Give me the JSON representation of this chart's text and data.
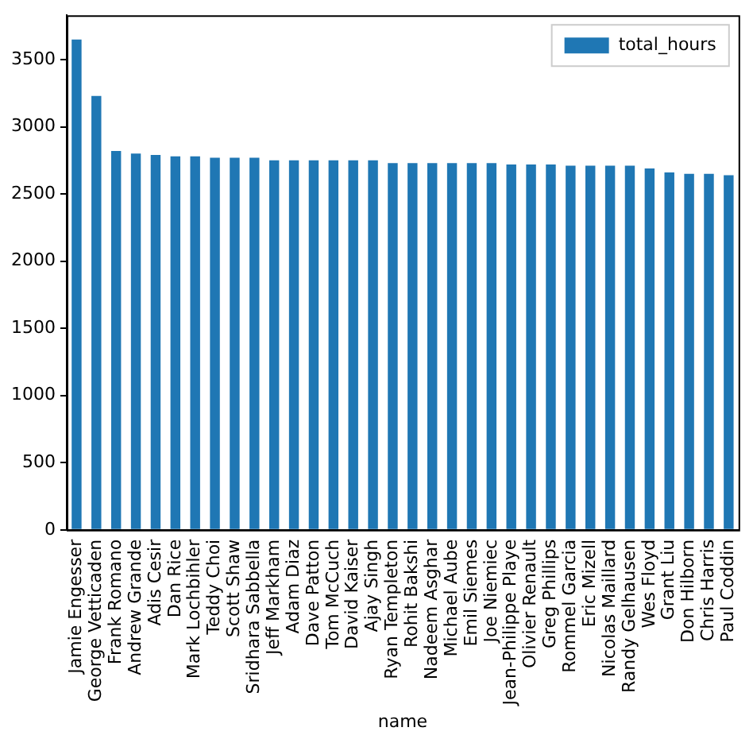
{
  "chart_data": {
    "type": "bar",
    "xlabel": "name",
    "categories": [
      "Jamie Engesser",
      "George Vetticaden",
      "Frank Romano",
      "Andrew Grande",
      "Adis Cesir",
      "Dan Rice",
      "Mark Lochbihler",
      "Teddy Choi",
      "Scott Shaw",
      "Sridhara Sabbella",
      "Jeff Markham",
      "Adam Diaz",
      "Dave Patton",
      "Tom McCuch",
      "David Kaiser",
      "Ajay Singh",
      "Ryan Templeton",
      "Rohit Bakshi",
      "Nadeem Asghar",
      "Michael Aube",
      "Emil Siemes",
      "Joe Niemiec",
      "Jean-Philippe Playe",
      "Olivier Renault",
      "Greg Phillips",
      "Rommel Garcia",
      "Eric Mizell",
      "Nicolas Maillard",
      "Randy Gelhausen",
      "Wes Floyd",
      "Grant Liu",
      "Don Hilborn",
      "Chris Harris",
      "Paul Coddin"
    ],
    "series": [
      {
        "name": "total_hours",
        "color": "#1f77b4",
        "values": [
          3650,
          3230,
          2820,
          2800,
          2790,
          2780,
          2780,
          2770,
          2770,
          2770,
          2750,
          2750,
          2750,
          2750,
          2750,
          2750,
          2730,
          2730,
          2730,
          2730,
          2730,
          2730,
          2720,
          2720,
          2720,
          2710,
          2710,
          2710,
          2710,
          2690,
          2660,
          2650,
          2650,
          2640
        ]
      }
    ],
    "ylim": [
      0,
      3830
    ],
    "yticks": [
      0,
      500,
      1000,
      1500,
      2000,
      2500,
      3000,
      3500
    ],
    "legend": "top right",
    "grid": false
  }
}
